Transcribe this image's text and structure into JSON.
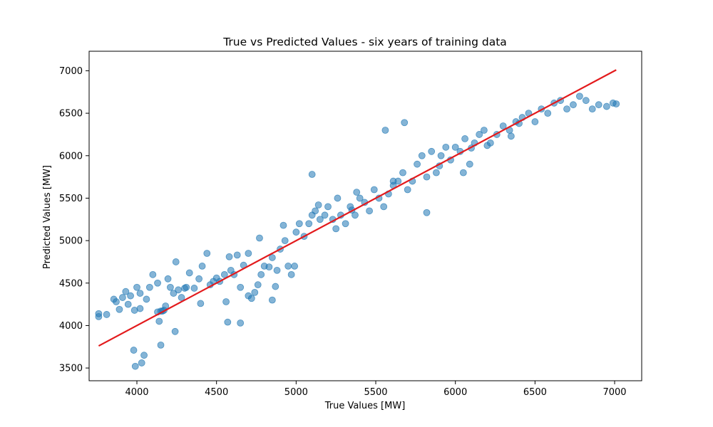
{
  "chart_data": {
    "type": "scatter",
    "title": "True vs Predicted Values - six years of training data",
    "xlabel": "True Values [MW]",
    "ylabel": "Predicted Values [MW]",
    "xlim": [
      3700,
      7170
    ],
    "ylim": [
      3350,
      7230
    ],
    "xticks": [
      4000,
      4500,
      5000,
      5500,
      6000,
      6500,
      7000
    ],
    "yticks": [
      3500,
      4000,
      4500,
      5000,
      5500,
      6000,
      6500,
      7000
    ],
    "grid": false,
    "legend": "none",
    "colors": {
      "points": "#1f77b4",
      "line": "#e31a1c"
    },
    "reference_line": {
      "x": [
        3760,
        7010
      ],
      "y": [
        3760,
        7010
      ]
    },
    "series": [
      {
        "style": "points",
        "x": [
          3760,
          3760,
          3810,
          3855,
          3870,
          3890,
          3910,
          3930,
          3945,
          3960,
          3980,
          3990,
          3985,
          4000,
          4020,
          4030,
          4045,
          4060,
          4080,
          4100,
          4130,
          4140,
          4150,
          4160,
          4170,
          4180,
          4195,
          4210,
          4230,
          4245,
          4260,
          4280,
          4310,
          4330,
          4360,
          4390,
          4410,
          4440,
          4460,
          4480,
          4500,
          4520,
          4550,
          4570,
          4590,
          4610,
          4630,
          4650,
          4670,
          4700,
          4720,
          4740,
          4760,
          4780,
          4800,
          4830,
          4850,
          4880,
          4900,
          4930,
          4950,
          4970,
          5000,
          5020,
          5050,
          5080,
          5100,
          5120,
          5150,
          5180,
          5200,
          5230,
          5260,
          5280,
          5310,
          5340,
          5370,
          5400,
          5430,
          5460,
          5490,
          5520,
          5550,
          5580,
          5610,
          5640,
          5670,
          5700,
          5730,
          5760,
          5790,
          5820,
          5850,
          5880,
          5910,
          5940,
          5970,
          6000,
          6030,
          6060,
          6090,
          6120,
          6150,
          6180,
          6220,
          6260,
          6300,
          6340,
          6380,
          6420,
          6460,
          6500,
          6540,
          6580,
          6620,
          6660,
          6700,
          6740,
          6780,
          6820,
          6860,
          6900,
          6950,
          6990,
          7010,
          4240,
          4650,
          4560,
          4850,
          5100,
          5560,
          5680,
          4020,
          4150,
          4130,
          4400,
          4700,
          4870,
          4990,
          5250,
          5350,
          5820,
          6050,
          6200,
          6350,
          4300,
          4580,
          4770,
          4920,
          5140,
          5380,
          5610,
          5900,
          6100,
          6400
        ],
        "y": [
          4140,
          4105,
          4130,
          4310,
          4280,
          4190,
          4330,
          4400,
          4250,
          4350,
          3710,
          3520,
          4180,
          4450,
          4380,
          3560,
          3650,
          4310,
          4450,
          4600,
          4160,
          4050,
          3770,
          4170,
          4180,
          4230,
          4550,
          4450,
          4380,
          4750,
          4420,
          4330,
          4450,
          4620,
          4440,
          4550,
          4700,
          4850,
          4480,
          4520,
          4560,
          4520,
          4600,
          4040,
          4650,
          4600,
          4830,
          4450,
          4710,
          4850,
          4320,
          4390,
          4480,
          4600,
          4700,
          4690,
          4800,
          4650,
          4900,
          5000,
          4700,
          4600,
          5100,
          5200,
          5050,
          5200,
          5300,
          5350,
          5250,
          5300,
          5400,
          5250,
          5500,
          5300,
          5200,
          5400,
          5300,
          5500,
          5450,
          5350,
          5600,
          5500,
          5400,
          5550,
          5650,
          5700,
          5800,
          5600,
          5700,
          5900,
          6000,
          5750,
          6050,
          5800,
          6000,
          6100,
          5950,
          6100,
          6050,
          6200,
          5900,
          6150,
          6250,
          6300,
          6150,
          6250,
          6350,
          6300,
          6400,
          6450,
          6500,
          6400,
          6550,
          6500,
          6620,
          6650,
          6550,
          6600,
          6700,
          6650,
          6550,
          6600,
          6580,
          6620,
          6610,
          3930,
          4030,
          4280,
          4300,
          5780,
          6300,
          6390,
          4200,
          4170,
          4500,
          4260,
          4350,
          4460,
          4700,
          5140,
          5360,
          5330,
          5800,
          6120,
          6230,
          4440,
          4810,
          5030,
          5180,
          5420,
          5570,
          5700,
          5880,
          6090,
          6380
        ]
      }
    ]
  }
}
